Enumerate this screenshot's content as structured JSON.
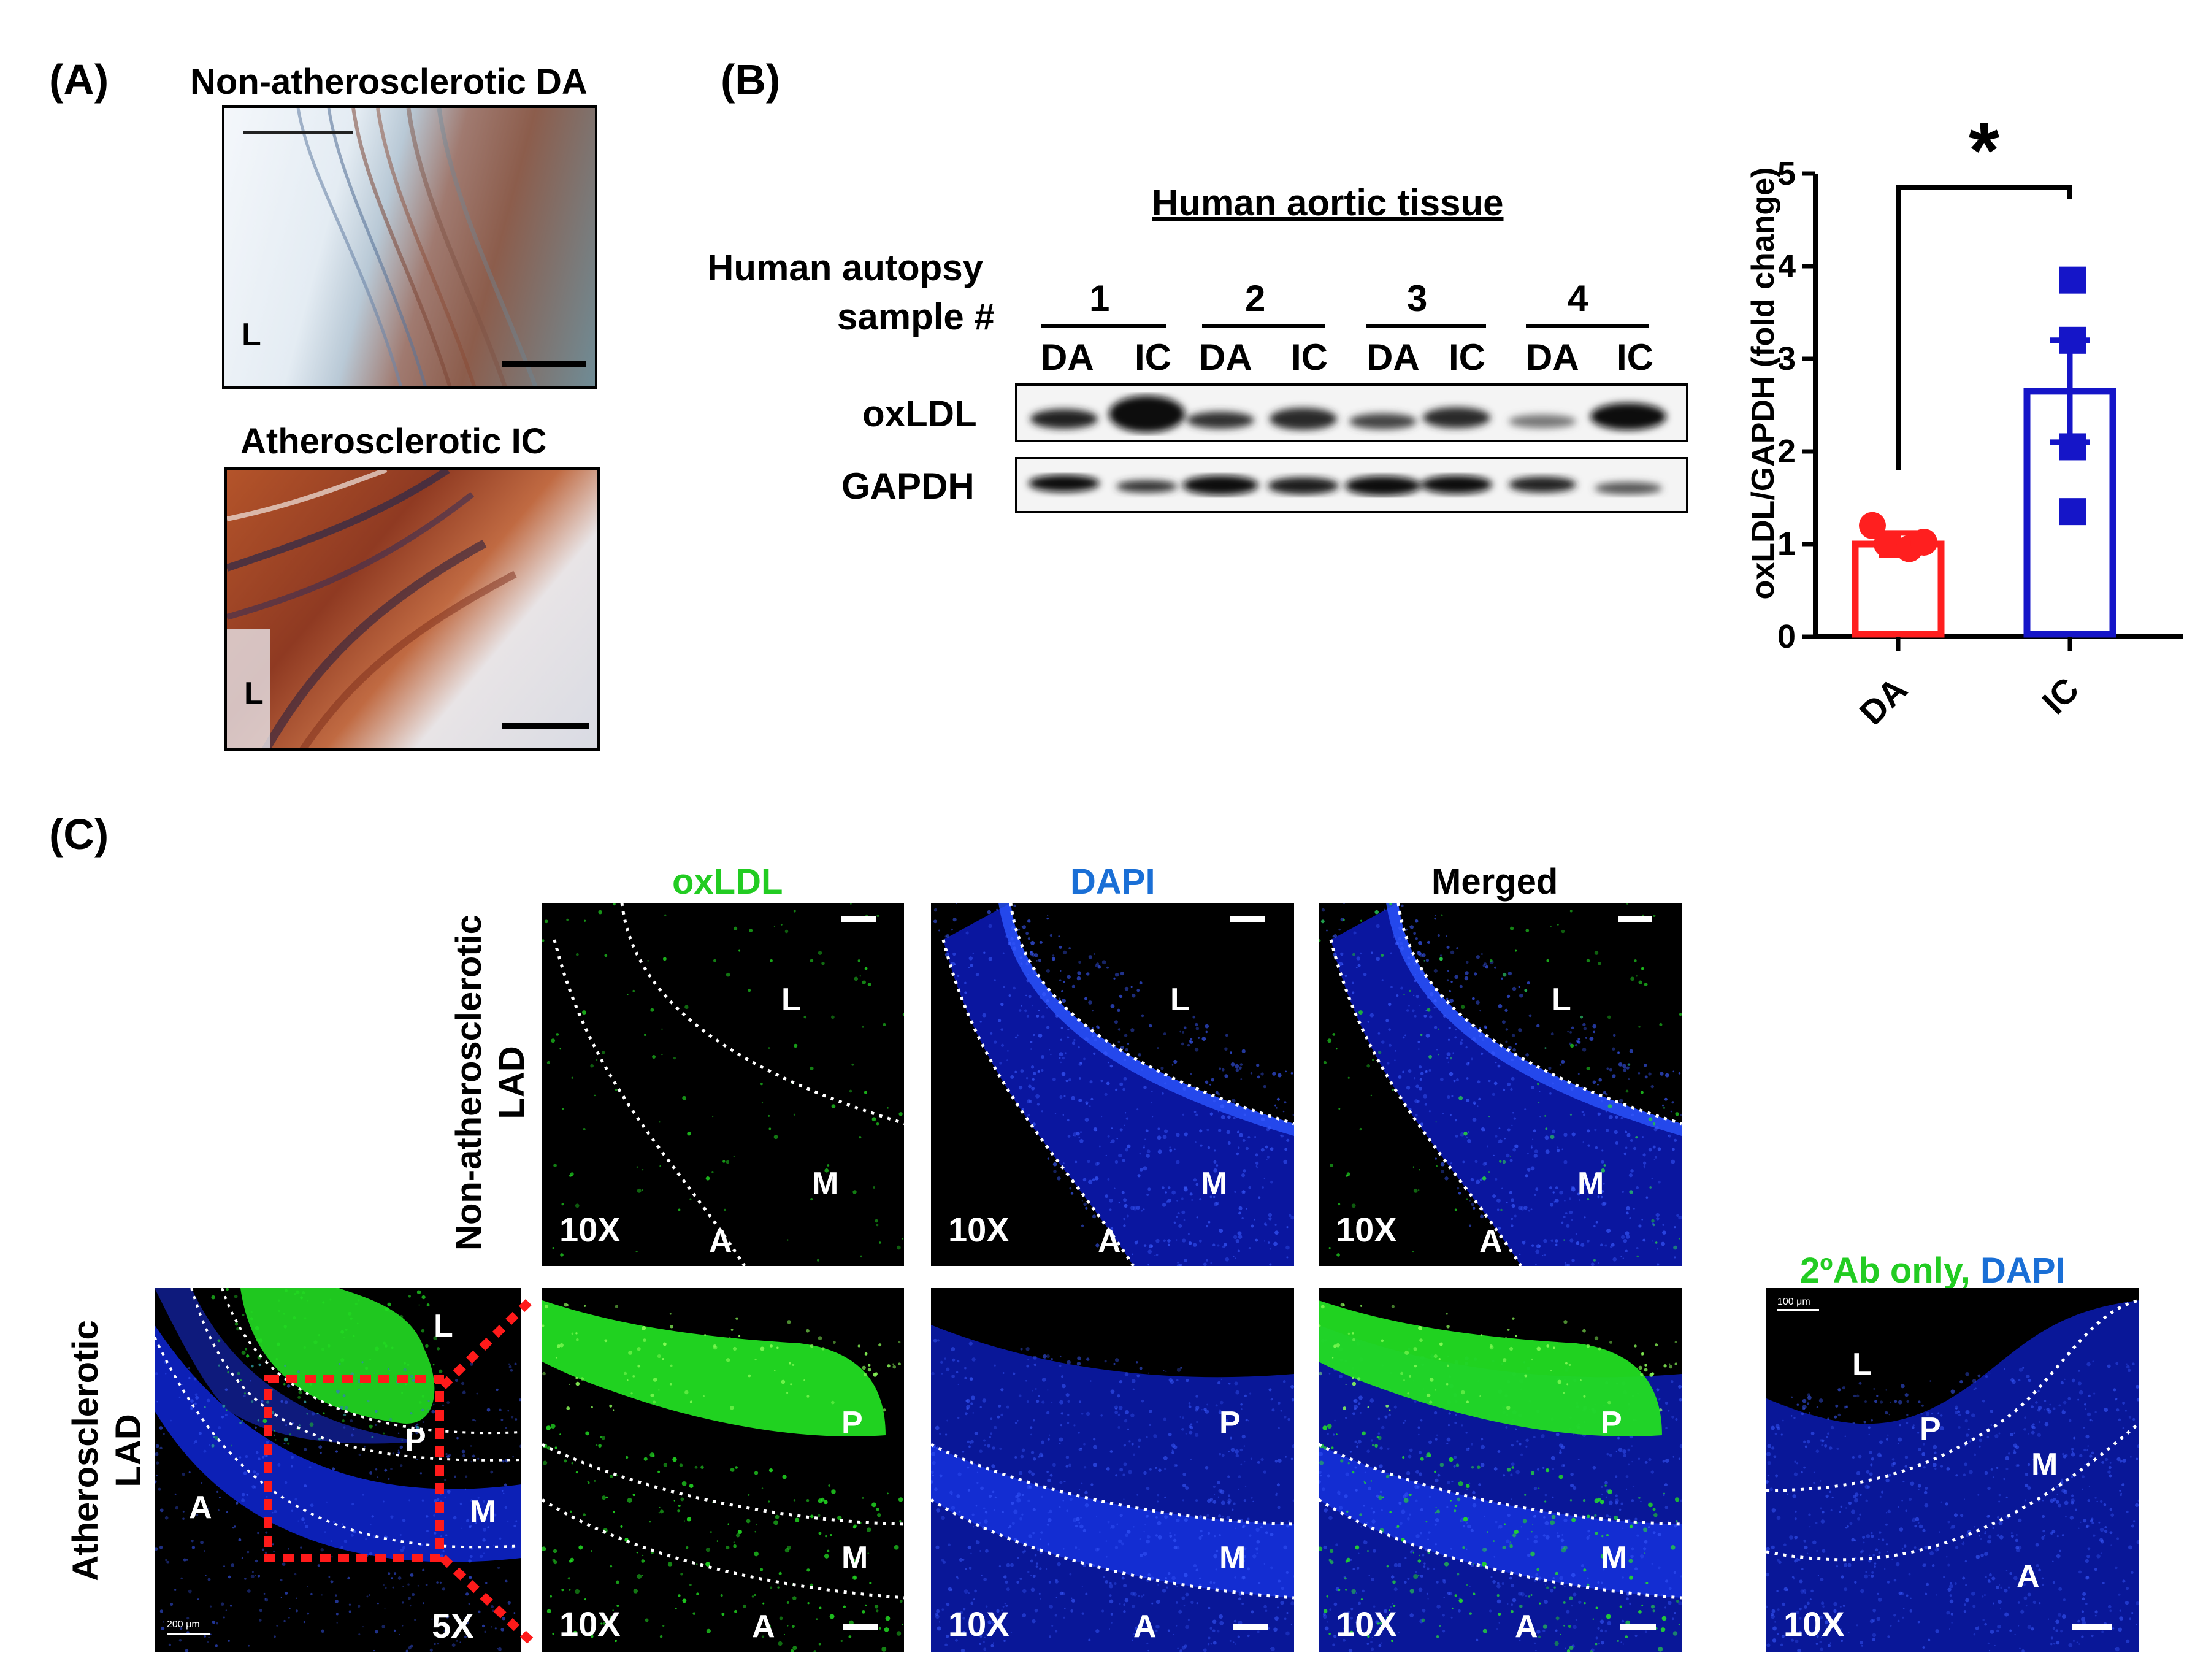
{
  "panels": {
    "a": "(A)",
    "b": "(B)",
    "c": "(C)"
  },
  "panel_a": {
    "top_title": "Non-atherosclerotic DA",
    "bottom_title": "Atherosclerotic IC",
    "lumen_label": "L"
  },
  "panel_b": {
    "header": "Human aortic tissue",
    "row_label_line1": "Human autopsy",
    "row_label_line2": "sample #",
    "samples": [
      "1",
      "2",
      "3",
      "4"
    ],
    "lanes": [
      "DA",
      "IC",
      "DA",
      "IC",
      "DA",
      "IC",
      "DA",
      "IC"
    ],
    "band1": "oxLDL",
    "band2": "GAPDH"
  },
  "chart_data": {
    "type": "bar",
    "categories": [
      "DA",
      "IC"
    ],
    "values": [
      1.0,
      2.65
    ],
    "errors": [
      0.12,
      0.55
    ],
    "points": {
      "DA": [
        1.2,
        1.0,
        0.95,
        1.02
      ],
      "IC": [
        3.85,
        3.2,
        2.05,
        1.35
      ]
    },
    "colors": {
      "DA": "#ff1f1f",
      "IC": "#1515c8"
    },
    "ylabel": "oxLDL/GAPDH (fold change)",
    "yticks": [
      0,
      1,
      2,
      3,
      4,
      5
    ],
    "ylim": [
      0,
      5
    ],
    "significance": "*"
  },
  "panel_c": {
    "col_oxldl": "oxLDL",
    "col_dapi": "DAPI",
    "col_merged": "Merged",
    "row1_line1": "Non-atherosclerotic",
    "row1_line2": "LAD",
    "row2_line1": "Atherosclerotic",
    "row2_line2": "LAD",
    "control_title_a": "2ºAb only,",
    "control_title_b": "DAPI",
    "mag10": "10X",
    "mag5": "5X",
    "L": "L",
    "M": "M",
    "A": "A",
    "P": "P",
    "scale_small_5x": "200 μm",
    "scale_small_ctrl": "100 μm",
    "colors": {
      "green": "#22cc22",
      "blue": "#1a6fd6"
    }
  }
}
